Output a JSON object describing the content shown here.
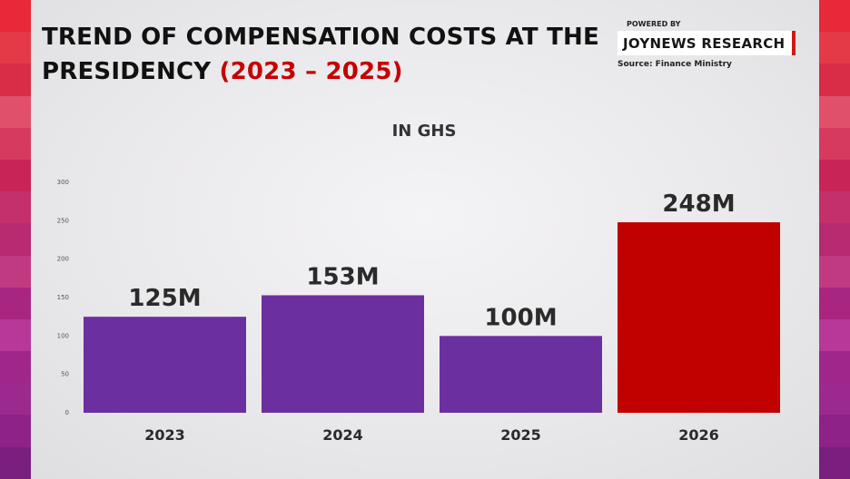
{
  "title": {
    "main": "TREND OF COMPENSATION COSTS AT THE PRESIDENCY",
    "accent": "(2023 – 2025)"
  },
  "brand": {
    "powered_by": "POWERED BY",
    "name": "JOYNEWS RESEARCH",
    "source": "Source: Finance Ministry"
  },
  "colors": {
    "bar_default": "#6c2fa0",
    "bar_highlight": "#c10000",
    "side_stripes": [
      "#e8293a",
      "#e43a48",
      "#d92c47",
      "#e0506a",
      "#d63a5e",
      "#c92458",
      "#c4306a",
      "#b82a72",
      "#c03a82",
      "#a82680",
      "#b8389a",
      "#a0268c",
      "#9c2a8e",
      "#8e2288",
      "#7a1e80"
    ]
  },
  "chart_data": {
    "type": "bar",
    "unit_label": "IN GHS",
    "categories": [
      "2023",
      "2024",
      "2025",
      "2026"
    ],
    "values": [
      125,
      153,
      100,
      248
    ],
    "data_labels": [
      "125M",
      "153M",
      "100M",
      "248M"
    ],
    "highlight_index": 3,
    "yticks": [
      "0",
      "50",
      "100",
      "150",
      "200",
      "250",
      "300"
    ],
    "ylim": [
      0,
      300
    ],
    "grid": false
  }
}
